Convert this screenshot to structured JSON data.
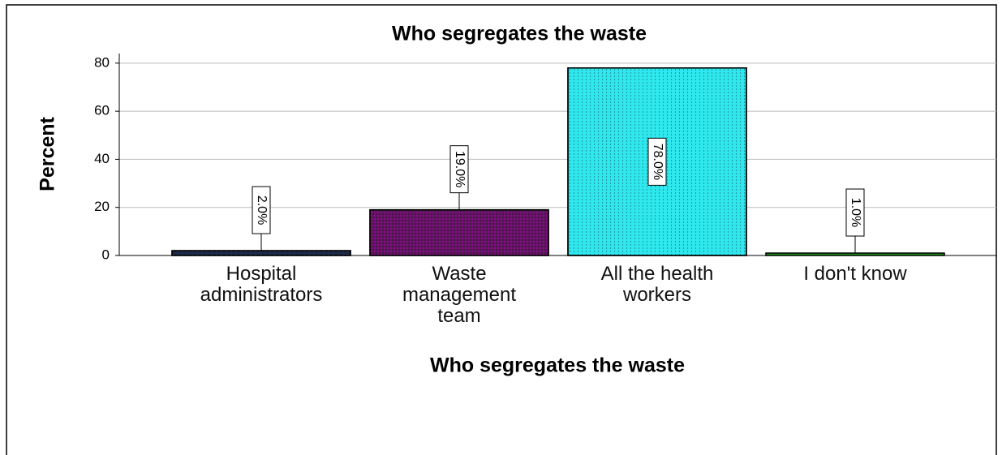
{
  "chart_data": {
    "type": "bar",
    "title": "Who segregates the waste",
    "x_label": "Who segregates the waste",
    "y_label": "Percent",
    "categories": [
      "Hospital administrators",
      "Waste management team",
      "All the health workers",
      "I don't know"
    ],
    "values": [
      2,
      19,
      78,
      1
    ],
    "value_labels": [
      "2.0%",
      "19.0%",
      "78.0%",
      "1.0%"
    ],
    "colors": [
      "#1c2a4a",
      "#8a0a8a",
      "#2ee8ee",
      "#1a9a1a"
    ],
    "ylim": [
      0,
      84
    ],
    "yticks": [
      0,
      20,
      40,
      60,
      80
    ],
    "grid": true
  }
}
